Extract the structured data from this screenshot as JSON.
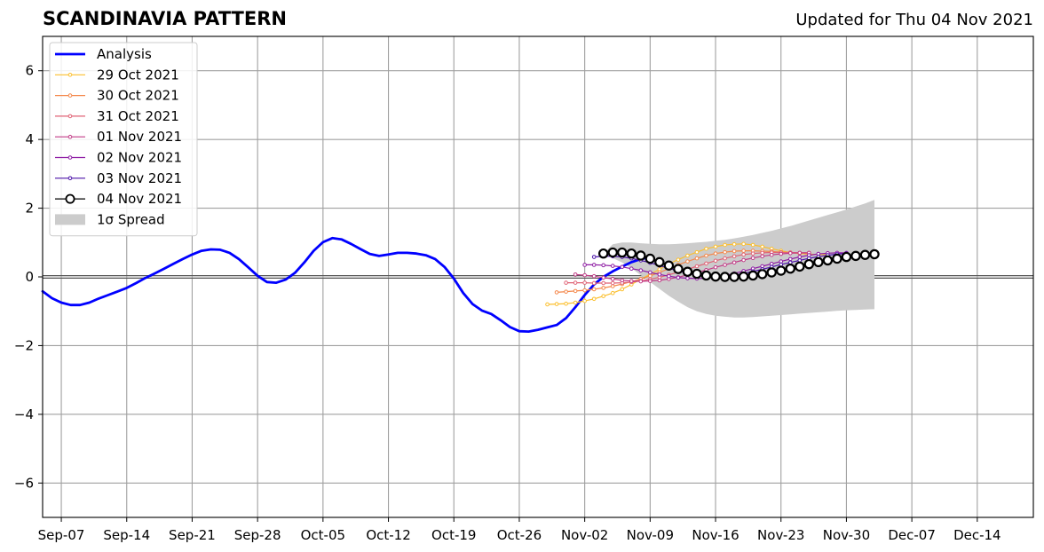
{
  "header": {
    "title": "SCANDINAVIA PATTERN",
    "updated": "Updated for Thu 04 Nov 2021"
  },
  "chart_data": {
    "type": "line",
    "title": "SCANDINAVIA PATTERN",
    "subtitle": "Updated for Thu 04 Nov 2021",
    "xlabel": "",
    "ylabel": "",
    "x_axis_type": "date",
    "xlim": [
      "2021-09-05",
      "2021-12-20"
    ],
    "ylim": [
      -7,
      7
    ],
    "x_ticks": [
      "Sep-07",
      "Sep-14",
      "Sep-21",
      "Sep-28",
      "Oct-05",
      "Oct-12",
      "Oct-19",
      "Oct-26",
      "Nov-02",
      "Nov-09",
      "Nov-16",
      "Nov-23",
      "Nov-30",
      "Dec-07",
      "Dec-14"
    ],
    "x_tick_dates": [
      "2021-09-07",
      "2021-09-14",
      "2021-09-21",
      "2021-09-28",
      "2021-10-05",
      "2021-10-12",
      "2021-10-19",
      "2021-10-26",
      "2021-11-02",
      "2021-11-09",
      "2021-11-16",
      "2021-11-23",
      "2021-11-30",
      "2021-12-07",
      "2021-12-14"
    ],
    "y_ticks": [
      -6,
      -4,
      -2,
      0,
      2,
      4,
      6
    ],
    "y_tick_labels": [
      "−6",
      "−4",
      "−2",
      "0",
      "2",
      "4",
      "6"
    ],
    "grid": true,
    "zero_line": 0,
    "legend_position": "top-left",
    "series": [
      {
        "name": "Analysis",
        "color": "#0000ff",
        "marker": "none",
        "start_date": "2021-09-05",
        "values": [
          -0.42,
          -0.62,
          -0.75,
          -0.82,
          -0.82,
          -0.75,
          -0.63,
          -0.53,
          -0.43,
          -0.32,
          -0.18,
          -0.03,
          0.1,
          0.24,
          0.38,
          0.52,
          0.65,
          0.76,
          0.8,
          0.79,
          0.7,
          0.52,
          0.28,
          0.03,
          -0.15,
          -0.17,
          -0.08,
          0.12,
          0.42,
          0.76,
          1.01,
          1.13,
          1.09,
          0.96,
          0.81,
          0.67,
          0.61,
          0.65,
          0.7,
          0.7,
          0.68,
          0.63,
          0.52,
          0.29,
          -0.05,
          -0.47,
          -0.79,
          -0.98,
          -1.08,
          -1.26,
          -1.46,
          -1.58,
          -1.59,
          -1.54,
          -1.47,
          -1.4,
          -1.2,
          -0.88,
          -0.53,
          -0.22,
          0.0,
          0.16,
          0.3,
          0.43,
          0.52,
          0.57
        ]
      },
      {
        "name": "29 Oct 2021",
        "color": "#fbbf2e",
        "marker": "small-dot",
        "start_date": "2021-10-29",
        "values": [
          -0.8,
          -0.79,
          -0.78,
          -0.75,
          -0.7,
          -0.64,
          -0.56,
          -0.47,
          -0.36,
          -0.22,
          -0.07,
          0.08,
          0.22,
          0.38,
          0.5,
          0.62,
          0.72,
          0.82,
          0.88,
          0.93,
          0.95,
          0.96,
          0.93,
          0.88,
          0.82,
          0.76,
          0.71,
          0.68,
          0.66,
          0.65,
          0.65
        ]
      },
      {
        "name": "30 Oct 2021",
        "color": "#f4874a",
        "marker": "small-dot",
        "start_date": "2021-10-30",
        "values": [
          -0.45,
          -0.43,
          -0.41,
          -0.39,
          -0.36,
          -0.32,
          -0.27,
          -0.21,
          -0.14,
          -0.06,
          0.03,
          0.13,
          0.24,
          0.35,
          0.45,
          0.54,
          0.62,
          0.68,
          0.72,
          0.75,
          0.76,
          0.76,
          0.75,
          0.74,
          0.72,
          0.7,
          0.69,
          0.68
        ]
      },
      {
        "name": "31 Oct 2021",
        "color": "#e06275",
        "marker": "small-dot",
        "start_date": "2021-10-31",
        "values": [
          -0.17,
          -0.17,
          -0.17,
          -0.18,
          -0.18,
          -0.18,
          -0.17,
          -0.15,
          -0.12,
          -0.07,
          -0.01,
          0.06,
          0.14,
          0.22,
          0.31,
          0.39,
          0.47,
          0.54,
          0.6,
          0.65,
          0.68,
          0.7,
          0.71,
          0.71,
          0.71,
          0.7,
          0.7
        ]
      },
      {
        "name": "01 Nov 2021",
        "color": "#c13b86",
        "marker": "small-dot",
        "start_date": "2021-11-01",
        "values": [
          0.07,
          0.05,
          0.02,
          -0.02,
          -0.06,
          -0.1,
          -0.12,
          -0.13,
          -0.12,
          -0.1,
          -0.06,
          -0.01,
          0.06,
          0.13,
          0.2,
          0.28,
          0.35,
          0.42,
          0.49,
          0.55,
          0.6,
          0.64,
          0.67,
          0.69,
          0.7,
          0.7
        ]
      },
      {
        "name": "02 Nov 2021",
        "color": "#8e1ca4",
        "marker": "small-dot",
        "start_date": "2021-11-02",
        "values": [
          0.35,
          0.35,
          0.34,
          0.32,
          0.29,
          0.24,
          0.19,
          0.13,
          0.07,
          0.02,
          -0.02,
          -0.04,
          -0.05,
          -0.04,
          -0.01,
          0.04,
          0.1,
          0.17,
          0.24,
          0.31,
          0.38,
          0.45,
          0.52,
          0.58,
          0.63,
          0.67,
          0.69,
          0.7,
          0.7
        ]
      },
      {
        "name": "03 Nov 2021",
        "color": "#4b12a8",
        "marker": "small-dot",
        "start_date": "2021-11-03",
        "values": [
          0.58,
          0.6,
          0.6,
          0.58,
          0.54,
          0.48,
          0.41,
          0.33,
          0.25,
          0.17,
          0.1,
          0.05,
          0.02,
          0.01,
          0.02,
          0.05,
          0.1,
          0.16,
          0.22,
          0.29,
          0.36,
          0.42,
          0.48,
          0.54,
          0.59,
          0.63,
          0.66,
          0.68
        ]
      },
      {
        "name": "04 Nov 2021",
        "color": "#000000",
        "marker": "open-circle",
        "start_date": "2021-11-04",
        "values": [
          0.68,
          0.71,
          0.71,
          0.68,
          0.62,
          0.53,
          0.43,
          0.33,
          0.23,
          0.15,
          0.09,
          0.04,
          0.01,
          0.0,
          0.0,
          0.01,
          0.04,
          0.08,
          0.13,
          0.18,
          0.24,
          0.3,
          0.37,
          0.43,
          0.48,
          0.53,
          0.58,
          0.61,
          0.64,
          0.66
        ]
      }
    ],
    "spread": {
      "name": "1σ Spread",
      "color": "#cccccc",
      "start_date": "2021-11-04",
      "upper": [
        0.68,
        0.95,
        1.0,
        1.0,
        0.98,
        0.96,
        0.95,
        0.95,
        0.96,
        0.98,
        1.0,
        1.02,
        1.05,
        1.08,
        1.12,
        1.17,
        1.22,
        1.28,
        1.34,
        1.41,
        1.48,
        1.56,
        1.64,
        1.72,
        1.8,
        1.88,
        1.96,
        2.05,
        2.14,
        2.24
      ],
      "lower": [
        0.68,
        0.55,
        0.42,
        0.25,
        0.05,
        -0.15,
        -0.35,
        -0.55,
        -0.72,
        -0.88,
        -1.0,
        -1.08,
        -1.13,
        -1.16,
        -1.18,
        -1.18,
        -1.17,
        -1.15,
        -1.13,
        -1.11,
        -1.09,
        -1.07,
        -1.05,
        -1.03,
        -1.01,
        -0.99,
        -0.97,
        -0.96,
        -0.95,
        -0.94
      ]
    }
  }
}
